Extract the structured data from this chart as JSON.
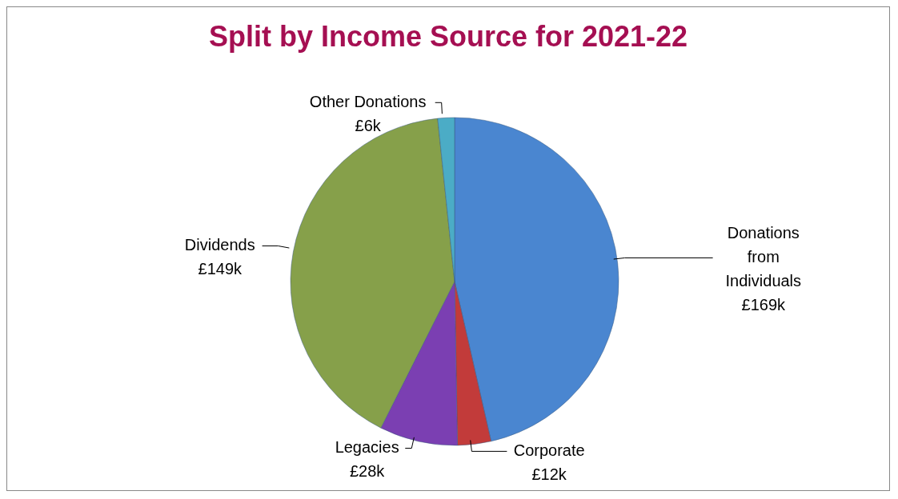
{
  "chart_data": {
    "type": "pie",
    "title": "Split by Income Source for 2021-22",
    "categories": [
      "Donations from Individuals",
      "Corporate",
      "Legacies",
      "Dividends",
      "Other Donations"
    ],
    "values": [
      169,
      12,
      28,
      149,
      6
    ],
    "value_labels": [
      "£169k",
      "£12k",
      "£28k",
      "£149k",
      "£6k"
    ],
    "colors": [
      "#4a86d0",
      "#c23b3a",
      "#7b3fb2",
      "#86a04a",
      "#4bacc6"
    ],
    "legend": false
  }
}
